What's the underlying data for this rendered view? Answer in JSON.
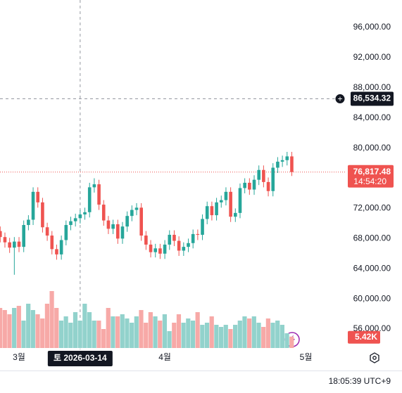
{
  "chart_data": {
    "type": "candlestick",
    "x": [
      "2026-02-25",
      "2026-02-26",
      "2026-02-27",
      "2026-02-28",
      "2026-03-01",
      "2026-03-02",
      "2026-03-03",
      "2026-03-04",
      "2026-03-05",
      "2026-03-06",
      "2026-03-07",
      "2026-03-08",
      "2026-03-09",
      "2026-03-10",
      "2026-03-11",
      "2026-03-12",
      "2026-03-13",
      "2026-03-14",
      "2026-03-15",
      "2026-03-16",
      "2026-03-17",
      "2026-03-18",
      "2026-03-19",
      "2026-03-20",
      "2026-03-21",
      "2026-03-22",
      "2026-03-23",
      "2026-03-24",
      "2026-03-25",
      "2026-03-26",
      "2026-03-27",
      "2026-03-28",
      "2026-03-29",
      "2026-03-30",
      "2026-03-31",
      "2026-04-01",
      "2026-04-02",
      "2026-04-03",
      "2026-04-04",
      "2026-04-05",
      "2026-04-06",
      "2026-04-07",
      "2026-04-08",
      "2026-04-09",
      "2026-04-10",
      "2026-04-11",
      "2026-04-12",
      "2026-04-13",
      "2026-04-14",
      "2026-04-15",
      "2026-04-16",
      "2026-04-17",
      "2026-04-18",
      "2026-04-19",
      "2026-04-20",
      "2026-04-21",
      "2026-04-22",
      "2026-04-23",
      "2026-04-24",
      "2026-04-25",
      "2026-04-26",
      "2026-04-27",
      "2026-04-28"
    ],
    "open": [
      69000,
      68200,
      67500,
      66800,
      67600,
      66900,
      69800,
      70500,
      74200,
      72800,
      69500,
      68400,
      66600,
      65900,
      67800,
      69800,
      70300,
      70700,
      71200,
      71500,
      74800,
      75200,
      72500,
      70400,
      69300,
      69900,
      68000,
      69600,
      71000,
      71800,
      72100,
      68400,
      67200,
      66200,
      66700,
      66000,
      67200,
      68500,
      67700,
      66400,
      66900,
      67400,
      68600,
      68500,
      70600,
      72300,
      71100,
      72800,
      73100,
      74200,
      70900,
      71400,
      74700,
      75400,
      74500,
      75800,
      77100,
      75500,
      74300,
      77400,
      78200,
      78400,
      78900
    ],
    "high": [
      69600,
      68800,
      68100,
      68200,
      68200,
      70400,
      71100,
      74800,
      74800,
      73400,
      70100,
      69000,
      67200,
      68400,
      70400,
      70900,
      71300,
      71800,
      72100,
      75400,
      76000,
      75800,
      73100,
      71000,
      70500,
      70500,
      70200,
      71600,
      72400,
      72700,
      72700,
      69000,
      67800,
      67300,
      67300,
      67800,
      69100,
      69100,
      68300,
      67500,
      68000,
      69200,
      69200,
      71200,
      72900,
      72900,
      73400,
      73700,
      74800,
      74800,
      72000,
      75300,
      76000,
      76000,
      76400,
      77700,
      77700,
      76100,
      78000,
      78800,
      79000,
      79500,
      79500
    ],
    "low": [
      67500,
      66800,
      66100,
      63200,
      66200,
      66200,
      69100,
      69800,
      72100,
      68800,
      67700,
      65900,
      65200,
      65200,
      67100,
      69100,
      69600,
      70000,
      70500,
      70800,
      74100,
      71800,
      69700,
      68600,
      68600,
      67300,
      67300,
      68900,
      70300,
      71100,
      67700,
      66500,
      65500,
      65500,
      65300,
      65300,
      66500,
      67000,
      65700,
      65700,
      66200,
      66700,
      67800,
      67800,
      69900,
      70400,
      70400,
      72100,
      72400,
      70200,
      70200,
      70700,
      74000,
      73800,
      73800,
      75100,
      74800,
      73600,
      73600,
      76700,
      77500,
      77700,
      76300
    ],
    "close": [
      68200,
      67500,
      66800,
      67600,
      66900,
      69800,
      70500,
      74200,
      72800,
      69500,
      68400,
      66600,
      65900,
      67800,
      69800,
      70300,
      70700,
      71200,
      71500,
      74800,
      75200,
      72500,
      70400,
      69300,
      69900,
      68000,
      69600,
      71000,
      71800,
      72100,
      68400,
      67200,
      66200,
      66700,
      66000,
      67200,
      68500,
      67700,
      66400,
      66900,
      67400,
      68600,
      68500,
      70600,
      72300,
      71100,
      72800,
      73100,
      74200,
      70900,
      71400,
      74700,
      75400,
      74500,
      75800,
      77100,
      75500,
      74300,
      77400,
      78200,
      78400,
      78900,
      76817.48
    ],
    "volume": [
      19,
      18,
      16,
      19,
      20,
      13,
      21,
      18,
      16,
      14,
      21,
      27,
      19,
      13,
      15,
      12,
      17,
      13,
      21,
      17,
      13,
      13,
      9,
      19,
      15,
      15,
      16,
      14,
      12,
      15,
      18,
      12,
      17,
      15,
      13,
      16,
      8,
      12,
      16,
      12,
      14,
      13,
      17,
      11,
      12,
      15,
      11,
      10,
      11,
      9,
      11,
      13,
      15,
      14,
      15,
      12,
      10,
      14,
      12,
      13,
      11,
      7,
      5.42
    ],
    "volume_badge": "5.42K",
    "up_color": "#26a69a",
    "down_color": "#ef5350",
    "volume_up_color": "#92d2cc",
    "volume_down_color": "#f7a9a7",
    "ylim": [
      53300,
      99640
    ],
    "yticks": [
      {
        "value": 96000,
        "label": "96,000.00"
      },
      {
        "value": 92000,
        "label": "92,000.00"
      },
      {
        "value": 88000,
        "label": "88,000.00"
      },
      {
        "value": 84000,
        "label": "84,000.00"
      },
      {
        "value": 80000,
        "label": "80,000.00"
      },
      {
        "value": 72000,
        "label": "72,000.00"
      },
      {
        "value": 68000,
        "label": "68,000.00"
      },
      {
        "value": 64000,
        "label": "64,000.00"
      },
      {
        "value": 60000,
        "label": "60,000.00"
      },
      {
        "value": 56000,
        "label": "56,000.00"
      }
    ],
    "xticks": [
      {
        "value": "2026-03-01",
        "label": "3월"
      },
      {
        "value": "2026-04-01",
        "label": "4월"
      },
      {
        "value": "2026-05-01",
        "label": "5월"
      }
    ],
    "crosshair": {
      "x": "2026-03-14",
      "x_label": "토 2026-03-14",
      "y": 86534.32,
      "y_label": "86,534.32"
    },
    "last_price": {
      "value": 76817.48,
      "label": "76,817.48",
      "countdown": "14:54:20"
    },
    "clock": "18:05:39 UTC+9"
  }
}
